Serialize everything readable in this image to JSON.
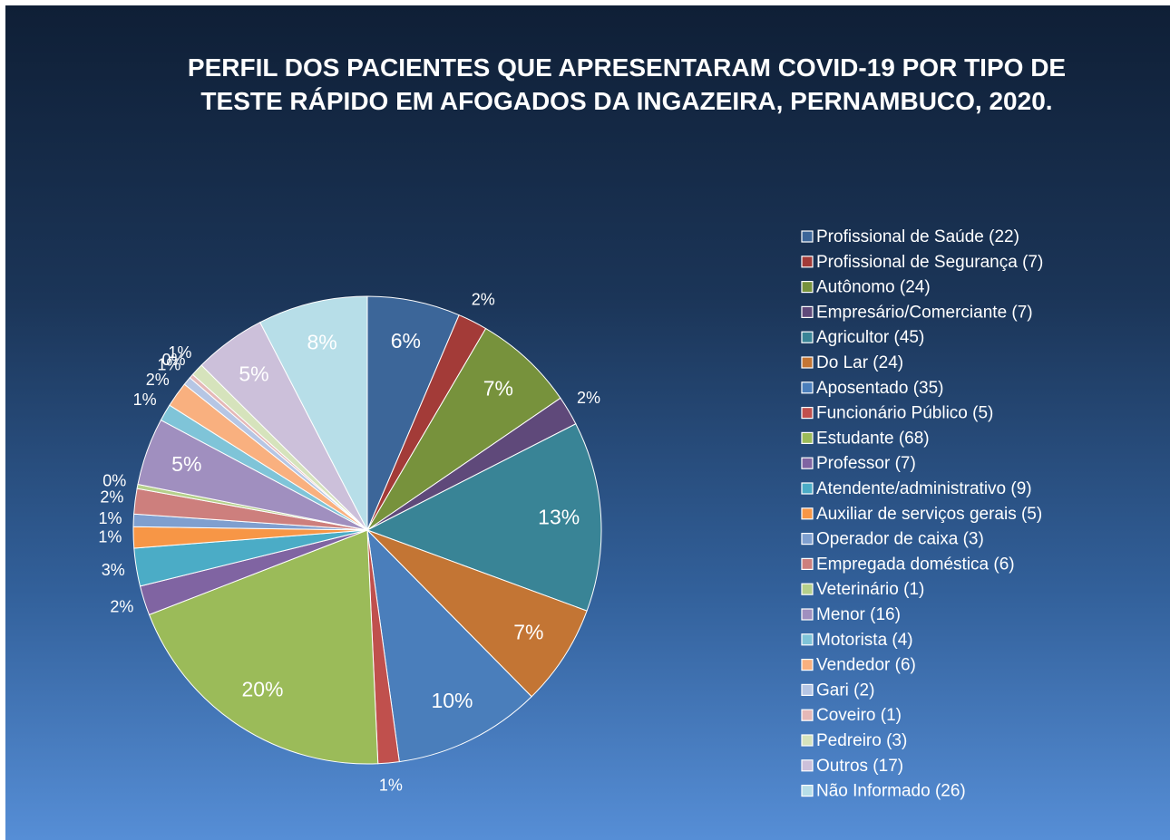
{
  "chart_data": {
    "type": "pie",
    "title": "PERFIL DOS PACIENTES QUE APRESENTARAM COVID-19 POR TIPO DE TESTE RÁPIDO EM AFOGADOS DA INGAZEIRA, PERNAMBUCO, 2020.",
    "categories": [
      "Profissional de Saúde (22)",
      "Profissional de Segurança (7)",
      "Autônomo (24)",
      "Empresário/Comerciante (7)",
      "Agricultor (45)",
      "Do Lar (24)",
      "Aposentado (35)",
      "Funcionário Público (5)",
      "Estudante (68)",
      "Professor (7)",
      "Atendente/administrativo (9)",
      "Auxiliar de serviços gerais (5)",
      "Operador de caixa (3)",
      "Empregada doméstica (6)",
      "Veterinário (1)",
      "Menor (16)",
      "Motorista (4)",
      "Vendedor (6)",
      "Gari (2)",
      "Coveiro (1)",
      "Pedreiro (3)",
      "Outros (17)",
      "Não Informado (26)"
    ],
    "values": [
      6.41,
      2.04,
      7.0,
      2.04,
      13.12,
      7.0,
      10.2,
      1.46,
      19.83,
      2.04,
      2.62,
      1.46,
      0.87,
      1.75,
      0.29,
      4.66,
      1.17,
      1.75,
      0.58,
      0.29,
      0.87,
      4.96,
      7.58
    ],
    "value_labels": [
      "6%",
      "2%",
      "7%",
      "2%",
      "13%",
      "7%",
      "10%",
      "1%",
      "20%",
      "2%",
      "3%",
      "1%",
      "1%",
      "2%",
      "0%",
      "5%",
      "1%",
      "2%",
      "1%",
      "0%",
      "1%",
      "5%",
      "8%"
    ],
    "colors": [
      "#3c6699",
      "#a33b38",
      "#77923c",
      "#5f497a",
      "#398496",
      "#c37534",
      "#4a7ebb",
      "#c0504d",
      "#9bbb59",
      "#8064a2",
      "#4bacc6",
      "#f79646",
      "#7f9fcf",
      "#cd7f7d",
      "#b5d08b",
      "#a08fbf",
      "#7fc4d8",
      "#f9b07f",
      "#b6c6e4",
      "#e5b8b7",
      "#d6e3bc",
      "#ccc0da",
      "#b7dee8"
    ],
    "legend": "right"
  }
}
